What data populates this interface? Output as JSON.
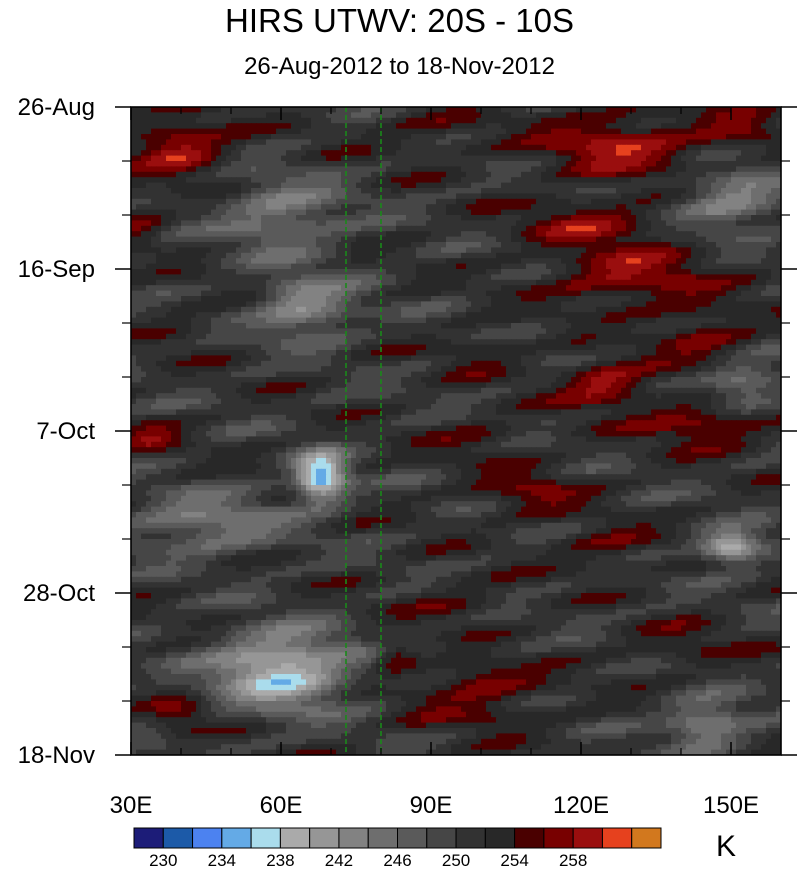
{
  "chart_data": {
    "type": "heatmap",
    "title": "HIRS UTWV: 20S - 10S",
    "subtitle": "26-Aug-2012 to 18-Nov-2012",
    "x_tick_labels": [
      "30E",
      "60E",
      "90E",
      "120E",
      "150E"
    ],
    "x_ticks": [
      30,
      60,
      90,
      120,
      150
    ],
    "x_range": [
      30,
      160
    ],
    "y_tick_labels": [
      "26-Aug",
      "16-Sep",
      "7-Oct",
      "28-Oct",
      "18-Nov"
    ],
    "y_ticks_days": [
      0,
      21,
      42,
      63,
      84
    ],
    "y_range_days": [
      0,
      84
    ],
    "units": "K",
    "colorbar": {
      "levels": [
        228,
        230,
        232,
        234,
        236,
        238,
        240,
        242,
        244,
        246,
        248,
        250,
        252,
        254,
        256,
        258,
        260,
        262
      ],
      "colors": [
        "#1c1c78",
        "#1c5aa8",
        "#4c82f0",
        "#64aae6",
        "#aadcec",
        "#aaaaaa",
        "#969696",
        "#828282",
        "#6e6e6e",
        "#5a5a5a",
        "#464646",
        "#323232",
        "#282828",
        "#4a0000",
        "#780000",
        "#9a0e0e",
        "#e6411e",
        "#d2781e"
      ],
      "tick_labels": [
        "230",
        "234",
        "238",
        "242",
        "246",
        "250",
        "254",
        "258"
      ],
      "tick_values": [
        230,
        234,
        238,
        242,
        246,
        250,
        254,
        258
      ]
    },
    "reference_lines_lon": [
      73,
      80
    ],
    "reference_line_color": "#1a8a1a",
    "features": [
      {
        "lon": 40,
        "day": 5,
        "amp": 8,
        "slon": 10,
        "sday": 4
      },
      {
        "lon": 90,
        "day": 3,
        "amp": 3,
        "slon": 12,
        "sday": 3
      },
      {
        "lon": 128,
        "day": 5,
        "amp": 8,
        "slon": 16,
        "sday": 4
      },
      {
        "lon": 152,
        "day": 3,
        "amp": 4,
        "slon": 8,
        "sday": 3
      },
      {
        "lon": 150,
        "day": 12,
        "amp": -8,
        "slon": 10,
        "sday": 4
      },
      {
        "lon": 60,
        "day": 14,
        "amp": -7,
        "slon": 12,
        "sday": 5
      },
      {
        "lon": 32,
        "day": 15,
        "amp": 4,
        "slon": 5,
        "sday": 3
      },
      {
        "lon": 122,
        "day": 15,
        "amp": 6,
        "slon": 14,
        "sday": 3
      },
      {
        "lon": 130,
        "day": 22,
        "amp": 7,
        "slon": 16,
        "sday": 4
      },
      {
        "lon": 65,
        "day": 26,
        "amp": -9,
        "slon": 9,
        "sday": 4
      },
      {
        "lon": 40,
        "day": 28,
        "amp": 2,
        "slon": 8,
        "sday": 3
      },
      {
        "lon": 145,
        "day": 30,
        "amp": 5,
        "slon": 10,
        "sday": 4
      },
      {
        "lon": 100,
        "day": 32,
        "amp": 3,
        "slon": 8,
        "sday": 3
      },
      {
        "lon": 125,
        "day": 36,
        "amp": 8,
        "slon": 9,
        "sday": 3
      },
      {
        "lon": 152,
        "day": 36,
        "amp": -8,
        "slon": 8,
        "sday": 3
      },
      {
        "lon": 145,
        "day": 41,
        "amp": 7,
        "slon": 12,
        "sday": 3
      },
      {
        "lon": 34,
        "day": 43,
        "amp": 5,
        "slon": 6,
        "sday": 2
      },
      {
        "lon": 68,
        "day": 48,
        "amp": -18,
        "slon": 5,
        "sday": 3
      },
      {
        "lon": 100,
        "day": 43,
        "amp": 3,
        "slon": 10,
        "sday": 3
      },
      {
        "lon": 110,
        "day": 50,
        "amp": 5,
        "slon": 10,
        "sday": 3
      },
      {
        "lon": 45,
        "day": 54,
        "amp": -7,
        "slon": 15,
        "sday": 4
      },
      {
        "lon": 150,
        "day": 57,
        "amp": -14,
        "slon": 6,
        "sday": 2
      },
      {
        "lon": 125,
        "day": 57,
        "amp": 4,
        "slon": 10,
        "sday": 3
      },
      {
        "lon": 95,
        "day": 64,
        "amp": 3,
        "slon": 10,
        "sday": 3
      },
      {
        "lon": 60,
        "day": 73,
        "amp": -14,
        "slon": 13,
        "sday": 5
      },
      {
        "lon": 83,
        "day": 71,
        "amp": 6,
        "slon": 4,
        "sday": 2
      },
      {
        "lon": 100,
        "day": 74,
        "amp": 6,
        "slon": 10,
        "sday": 2
      },
      {
        "lon": 140,
        "day": 70,
        "amp": 3,
        "slon": 12,
        "sday": 3
      },
      {
        "lon": 40,
        "day": 79,
        "amp": 5,
        "slon": 6,
        "sday": 2
      },
      {
        "lon": 100,
        "day": 78,
        "amp": 4,
        "slon": 14,
        "sday": 3
      },
      {
        "lon": 145,
        "day": 80,
        "amp": -9,
        "slon": 8,
        "sday": 3
      }
    ]
  }
}
